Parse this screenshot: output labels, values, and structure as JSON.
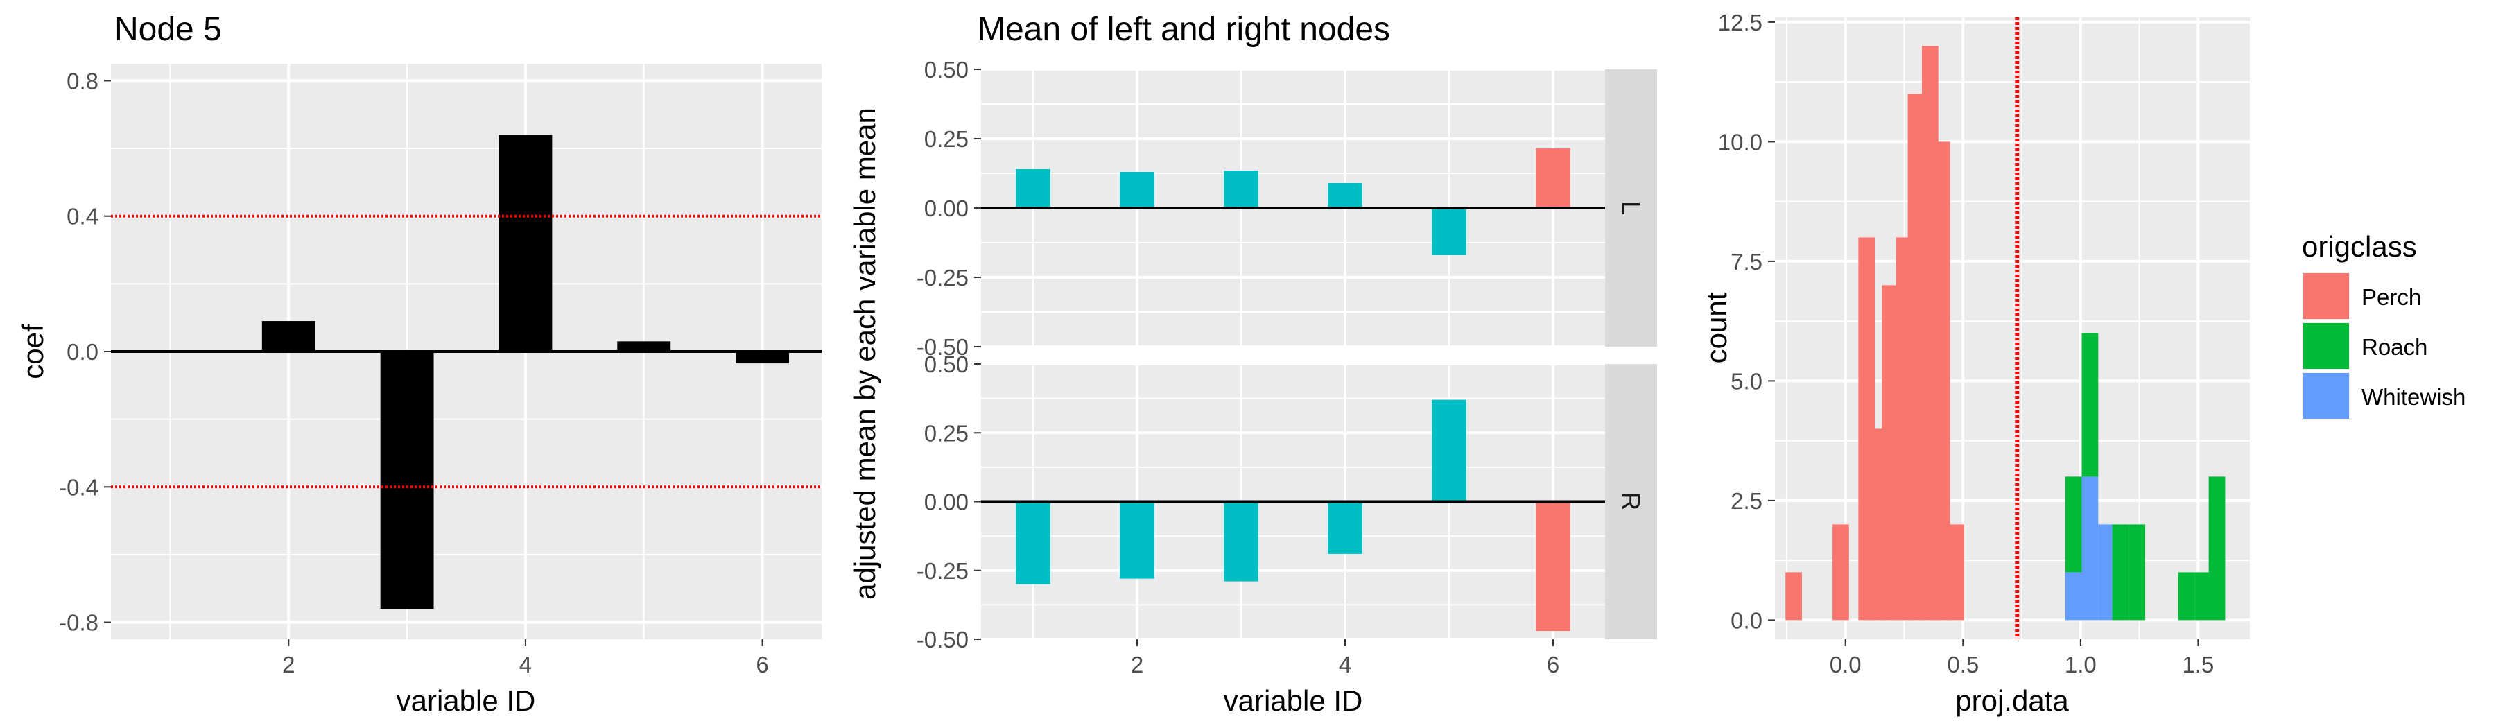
{
  "chart_data": [
    {
      "type": "bar",
      "title": "Node 5",
      "xlabel": "variable ID",
      "ylabel": "coef",
      "x": [
        1,
        2,
        3,
        4,
        5,
        6
      ],
      "values": [
        0.0,
        0.09,
        -0.76,
        0.64,
        0.03,
        -0.035
      ],
      "xlim": [
        0.5,
        6.5
      ],
      "ylim": [
        -0.85,
        0.85
      ],
      "xticks": [
        2,
        4,
        6
      ],
      "xtick_labels": [
        "2",
        "4",
        "6"
      ],
      "yticks": [
        -0.8,
        -0.4,
        0.0,
        0.4,
        0.8
      ],
      "ytick_labels": [
        "-0.8",
        "-0.4",
        "0.0",
        "0.4",
        "0.8"
      ],
      "hlines": [
        0.4,
        -0.4
      ],
      "bar_color": "#000000",
      "hline_color": "#ff0000",
      "grid": true
    },
    {
      "type": "bar",
      "title": "Mean of left and right nodes",
      "xlabel": "variable ID",
      "ylabel": "adjusted mean by each variable mean",
      "x": [
        1,
        2,
        3,
        4,
        5,
        6
      ],
      "xlim": [
        0.5,
        6.5
      ],
      "ylim": [
        -0.5,
        0.5
      ],
      "xticks": [
        2,
        4,
        6
      ],
      "xtick_labels": [
        "2",
        "4",
        "6"
      ],
      "yticks": [
        -0.5,
        -0.25,
        0.0,
        0.25,
        0.5
      ],
      "ytick_labels": [
        "-0.50",
        "-0.25",
        "0.00",
        "0.25",
        "0.50"
      ],
      "facets": [
        {
          "strip": "L",
          "values": [
            0.14,
            0.13,
            0.135,
            0.09,
            -0.17,
            0.215
          ],
          "colors": [
            "#00bfc4",
            "#00bfc4",
            "#00bfc4",
            "#00bfc4",
            "#00bfc4",
            "#f8766d"
          ]
        },
        {
          "strip": "R",
          "values": [
            -0.3,
            -0.28,
            -0.29,
            -0.19,
            0.37,
            -0.47
          ],
          "colors": [
            "#00bfc4",
            "#00bfc4",
            "#00bfc4",
            "#00bfc4",
            "#00bfc4",
            "#f8766d"
          ]
        }
      ],
      "grid": true
    },
    {
      "type": "bar",
      "subtype": "stacked histogram",
      "xlabel": "proj.data",
      "ylabel": "count",
      "bin_width": 0.07,
      "xlim": [
        -0.3,
        1.72
      ],
      "ylim": [
        -0.4,
        12.6
      ],
      "xticks": [
        0.0,
        0.5,
        1.0,
        1.5
      ],
      "xtick_labels": [
        "0.0",
        "0.5",
        "1.0",
        "1.5"
      ],
      "yticks": [
        0,
        2.5,
        5,
        7.5,
        10,
        12.5
      ],
      "ytick_labels": [
        "0.0",
        "2.5",
        "5.0",
        "7.5",
        "10.0",
        "12.5"
      ],
      "vline": 0.73,
      "vline_color": "#ff0000",
      "series": [
        {
          "name": "Perch",
          "color": "#f8766d",
          "bins": [
            [
              -0.22,
              1
            ],
            [
              -0.02,
              2
            ],
            [
              0.09,
              8
            ],
            [
              0.13,
              4
            ],
            [
              0.19,
              7
            ],
            [
              0.25,
              8
            ],
            [
              0.3,
              11
            ],
            [
              0.36,
              12
            ],
            [
              0.41,
              10
            ],
            [
              0.47,
              2
            ]
          ]
        },
        {
          "name": "Roach",
          "color": "#00ba38",
          "bins": [
            [
              0.97,
              2
            ],
            [
              1.04,
              3
            ],
            [
              1.11,
              0
            ],
            [
              1.17,
              2
            ],
            [
              1.24,
              2
            ],
            [
              1.45,
              1
            ],
            [
              1.52,
              1
            ],
            [
              1.58,
              3
            ]
          ]
        },
        {
          "name": "Whitewish",
          "color": "#619cff",
          "bins": [
            [
              0.97,
              1
            ],
            [
              1.04,
              3
            ],
            [
              1.11,
              2
            ]
          ]
        }
      ],
      "legend": {
        "title": "origclass",
        "position": "right",
        "items": [
          "Perch",
          "Roach",
          "Whitewish"
        ]
      },
      "grid": true
    }
  ]
}
